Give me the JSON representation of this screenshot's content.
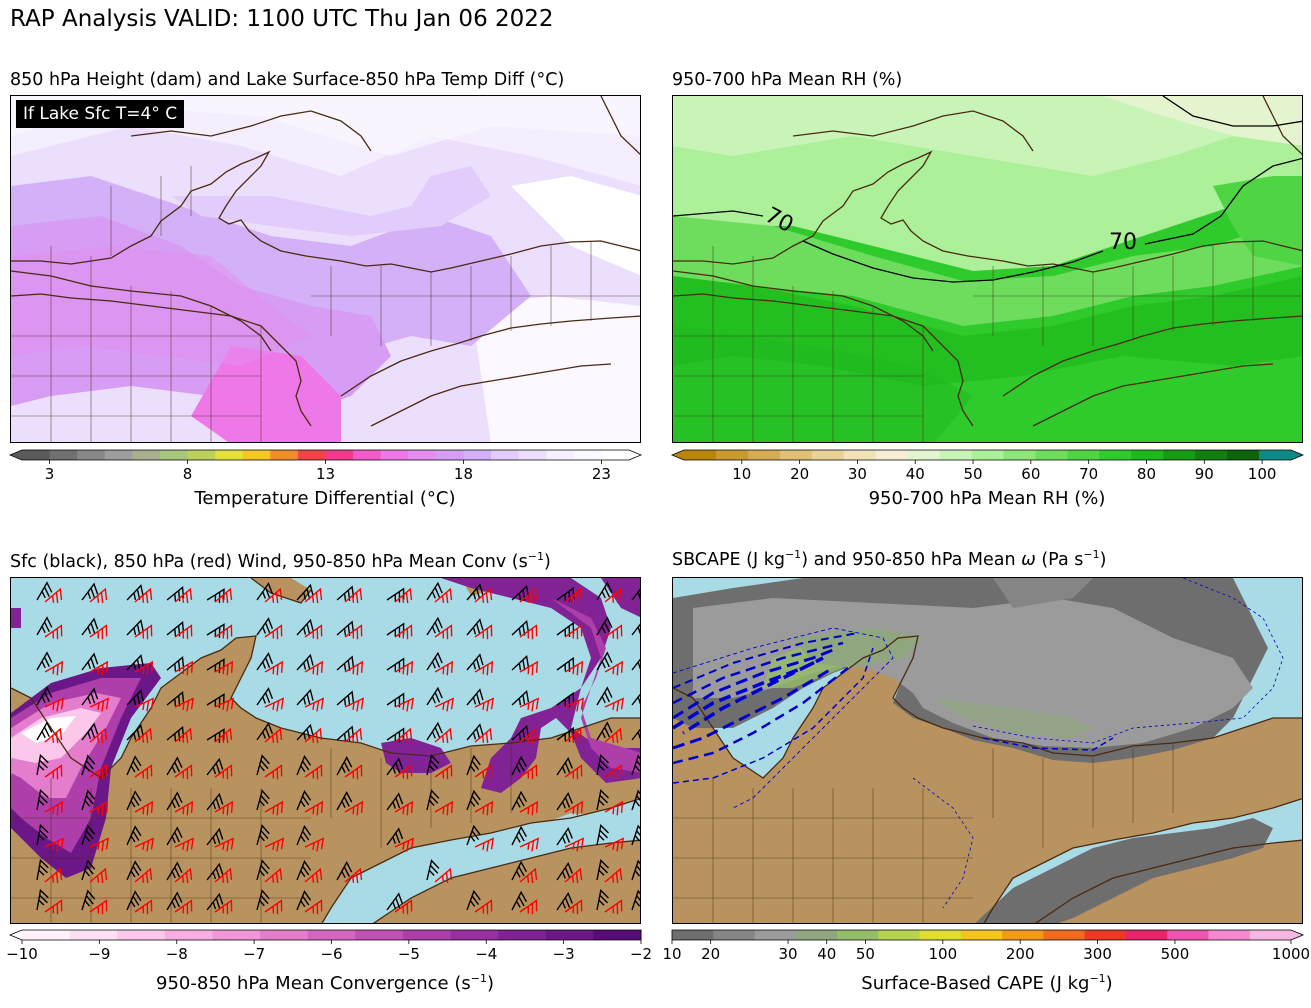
{
  "title": "RAP Analysis VALID: 1100 UTC Thu Jan 06 2022",
  "chart_data": [
    {
      "type": "heatmap",
      "title": "850 hPa Height (dam) and Lake Surface-850 hPa Temp Diff (°C)",
      "annotation": "If Lake Sfc T=4° C",
      "colorbar": {
        "label": "Temperature Differential (°C)",
        "ticks": [
          3,
          8,
          13,
          18,
          23
        ],
        "range": [
          2,
          24
        ],
        "colors": [
          "#5a5a5a",
          "#707070",
          "#888888",
          "#9e9e9e",
          "#a8b08f",
          "#a7c57c",
          "#bcd05e",
          "#e3df3e",
          "#f5c628",
          "#f08c2a",
          "#ee4648",
          "#ee3d8c",
          "#f25cc8",
          "#ef78e8",
          "#e58ef0",
          "#d79cf4",
          "#d4b0f8",
          "#e2ccfb",
          "#ecdffd",
          "#f6effe",
          "#fbf8ff",
          "#ffffff"
        ]
      },
      "field_values_range": [
        13,
        22
      ]
    },
    {
      "type": "heatmap",
      "title": "950-700 hPa Mean RH (%)",
      "contour_labels": [
        "70",
        "70"
      ],
      "colorbar": {
        "label": "950-700 hPa Mean RH (%)",
        "ticks": [
          10,
          20,
          30,
          40,
          50,
          60,
          70,
          80,
          90,
          100
        ],
        "range": [
          0,
          105
        ],
        "colors": [
          "#b8860b",
          "#c99a2e",
          "#d6ac52",
          "#e1bf75",
          "#ead196",
          "#f2e2b8",
          "#f6efd5",
          "#e3f4cf",
          "#c9f4b8",
          "#adf09a",
          "#8ee67a",
          "#6edd5d",
          "#4fd544",
          "#2fca2c",
          "#1db81b",
          "#169b15",
          "#127d11",
          "#0e640d",
          "#0d8a86"
        ]
      },
      "field_values_range": [
        55,
        85
      ]
    },
    {
      "type": "heatmap",
      "title": "Sfc (black), 850 hPa (red) Wind, 950-850 hPa Mean Conv (s",
      "title_suffix": ")",
      "colorbar": {
        "label": "950-850 hPa Mean Convergence (s",
        "label_suffix": ")",
        "ticks": [
          -10,
          -9,
          -8,
          -7,
          -6,
          -5,
          -4,
          -3,
          -2
        ],
        "tick_labels": [
          "−10",
          "−9",
          "−8",
          "−7",
          "−6",
          "−5",
          "−4",
          "−3",
          "−2"
        ],
        "range": [
          -10,
          -2
        ],
        "colors": [
          "#fff2fb",
          "#fde0f4",
          "#fbc8ec",
          "#f7aee2",
          "#f196d8",
          "#e47dcc",
          "#d466c0",
          "#c151b5",
          "#ad3eaa",
          "#98309f",
          "#812394",
          "#6c1787",
          "#570c79"
        ]
      },
      "wind_barbs": {
        "surface_color": "#000000",
        "850hPa_color": "#ff0000"
      }
    },
    {
      "type": "heatmap",
      "title": "SBCAPE (J kg",
      "title_mid": ") and 950-850 hPa Mean ",
      "title_omega": "ω",
      "title_end": " (Pa s",
      "title_close": ")",
      "colorbar": {
        "label": "Surface-Based CAPE (J kg",
        "label_suffix": ")",
        "ticks": [
          10,
          20,
          30,
          40,
          50,
          100,
          200,
          300,
          500,
          1000
        ],
        "range": [
          10,
          1000
        ],
        "colors": [
          "#6e6e6e",
          "#858585",
          "#9b9b9b",
          "#8fa67f",
          "#96bd6a",
          "#b6d350",
          "#e0de35",
          "#f5c51f",
          "#f29a1b",
          "#ef6b1d",
          "#ec3a24",
          "#e7256b",
          "#ee55b0",
          "#f489d0",
          "#f9b8e4"
        ]
      },
      "omega_contour_color": "#0000cc"
    }
  ],
  "superscripts": {
    "minus_one": "−1"
  },
  "colors": {
    "land": "#b9935f",
    "water": "#a8dbe6",
    "border": "#4a2a10"
  }
}
